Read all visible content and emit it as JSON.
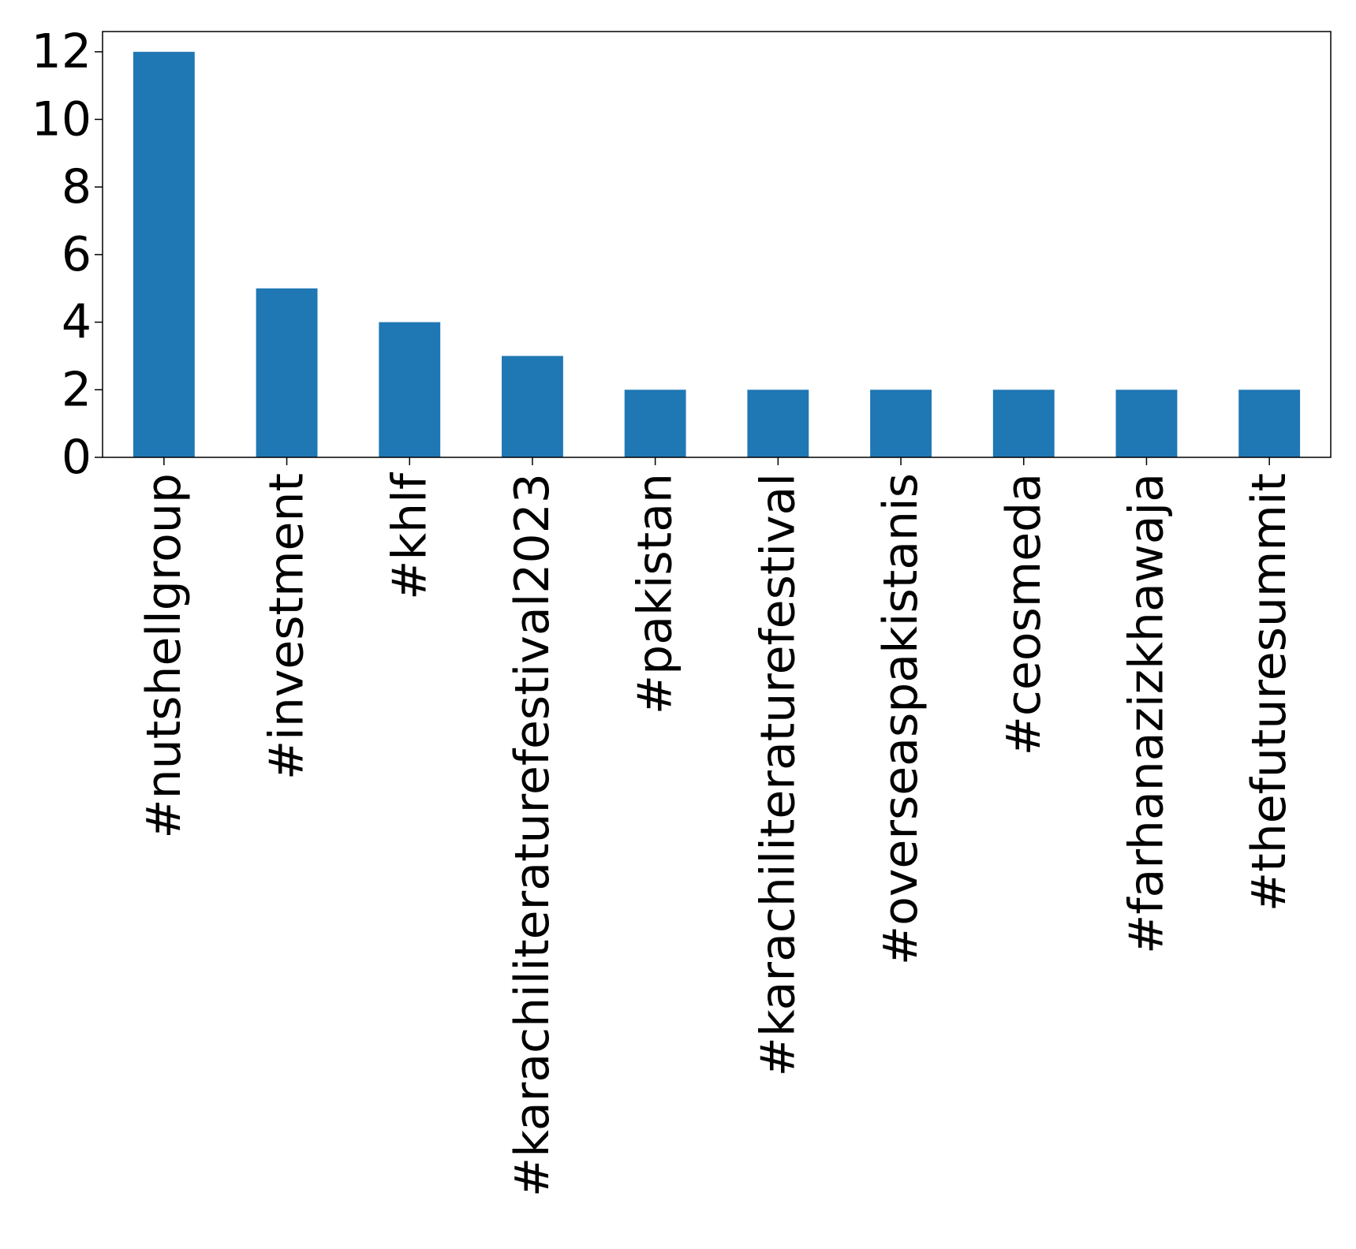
{
  "chart_data": {
    "type": "bar",
    "title": "",
    "xlabel": "",
    "ylabel": "",
    "categories": [
      "#nutshellgroup",
      "#investment",
      "#khlf",
      "#karachiliteraturefestival2023",
      "#pakistan",
      "#karachiliteraturefestival",
      "#overseaspakistanis",
      "#ceosmeda",
      "#farhanazizkhawaja",
      "#thefuturesummit"
    ],
    "values": [
      12,
      5,
      4,
      3,
      2,
      2,
      2,
      2,
      2,
      2
    ],
    "ylim": [
      0,
      12.6
    ],
    "yticks": [
      0,
      2,
      4,
      6,
      8,
      10,
      12
    ],
    "bar_color": "#1f77b4",
    "grid": false,
    "legend": false
  }
}
